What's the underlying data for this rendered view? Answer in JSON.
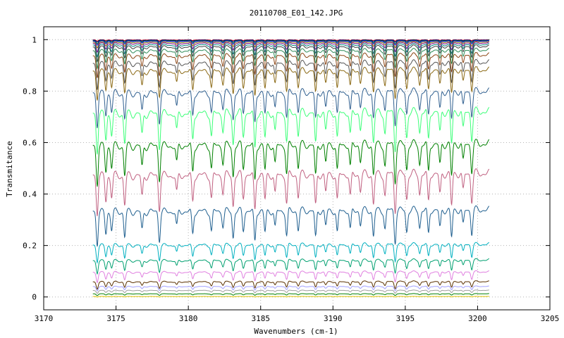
{
  "chart_data": {
    "type": "line",
    "title": "20110708_E01_142.JPG",
    "xlabel": "Wavenumbers (cm-1)",
    "ylabel": "Transmitance",
    "xlim": [
      3170,
      3205
    ],
    "ylim": [
      -0.05,
      1.05
    ],
    "x_ticks": [
      3170,
      3175,
      3180,
      3185,
      3190,
      3195,
      3200,
      3205
    ],
    "y_ticks": [
      0,
      0.2,
      0.4,
      0.6,
      0.8,
      1
    ],
    "y_tick_labels": [
      "0",
      "0.2",
      "0.4",
      "0.6",
      "0.8",
      "1"
    ],
    "grid": "dashed",
    "legend": "none",
    "x_range_data": [
      3173.4,
      3200.8
    ],
    "absorption_lines": [
      3173.7,
      3174.3,
      3174.7,
      3175.6,
      3176.8,
      3178.0,
      3179.2,
      3180.3,
      3181.6,
      3182.4,
      3183.1,
      3183.8,
      3184.6,
      3185.3,
      3186.0,
      3186.8,
      3187.6,
      3188.8,
      3189.5,
      3190.3,
      3191.2,
      3191.9,
      3192.8,
      3193.6,
      3194.3,
      3195.1,
      3196.0,
      3196.6,
      3197.4,
      3198.2,
      3199.0,
      3199.6
    ],
    "series": [
      {
        "baseline": 0.999,
        "depth": 0.004,
        "color": "#ff0000"
      },
      {
        "baseline": 0.998,
        "depth": 0.006,
        "color": "#000080"
      },
      {
        "baseline": 0.996,
        "depth": 0.01,
        "color": "#008000"
      },
      {
        "baseline": 0.994,
        "depth": 0.014,
        "color": "#0000ff"
      },
      {
        "baseline": 0.99,
        "depth": 0.02,
        "color": "#808000"
      },
      {
        "baseline": 0.985,
        "depth": 0.03,
        "color": "#800080"
      },
      {
        "baseline": 0.978,
        "depth": 0.04,
        "color": "#008080"
      },
      {
        "baseline": 0.97,
        "depth": 0.05,
        "color": "#404040"
      },
      {
        "baseline": 0.955,
        "depth": 0.06,
        "color": "#2e8b57"
      },
      {
        "baseline": 0.935,
        "depth": 0.075,
        "color": "#8b4513"
      },
      {
        "baseline": 0.905,
        "depth": 0.09,
        "color": "#555555"
      },
      {
        "baseline": 0.875,
        "depth": 0.1,
        "color": "#8b6914"
      },
      {
        "baseline": 0.79,
        "depth": 0.12,
        "color": "#2f5f8f"
      },
      {
        "baseline": 0.71,
        "depth": 0.14,
        "color": "#3cff78"
      },
      {
        "baseline": 0.585,
        "depth": 0.14,
        "color": "#008000"
      },
      {
        "baseline": 0.47,
        "depth": 0.14,
        "color": "#c06080"
      },
      {
        "baseline": 0.33,
        "depth": 0.12,
        "color": "#1f5f8f"
      },
      {
        "baseline": 0.2,
        "depth": 0.06,
        "color": "#00b0c0"
      },
      {
        "baseline": 0.14,
        "depth": 0.045,
        "color": "#00a070"
      },
      {
        "baseline": 0.095,
        "depth": 0.035,
        "color": "#e080e0"
      },
      {
        "baseline": 0.058,
        "depth": 0.025,
        "color": "#5a3000"
      },
      {
        "baseline": 0.04,
        "depth": 0.015,
        "color": "#a0a0ff"
      },
      {
        "baseline": 0.025,
        "depth": 0.01,
        "color": "#a0a0a0"
      },
      {
        "baseline": 0.012,
        "depth": 0.006,
        "color": "#008000"
      },
      {
        "baseline": 0.002,
        "depth": 0.002,
        "color": "#e0c000"
      }
    ]
  }
}
